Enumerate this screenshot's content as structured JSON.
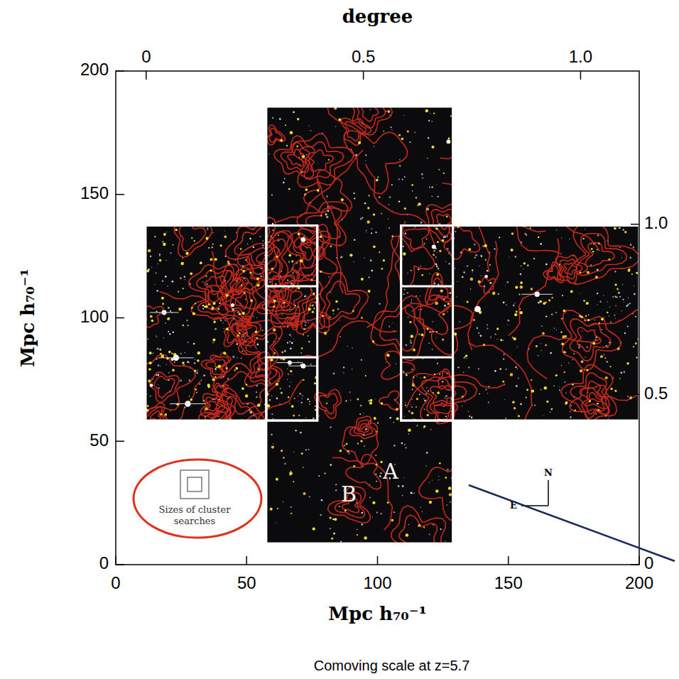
{
  "chart_data": {
    "type": "image",
    "x_label": "Mpc h₇₀⁻¹",
    "y_label": "Mpc h₇₀⁻¹",
    "x2_label": "degree",
    "caption": "Comoving scale at z=5.7",
    "xlim": [
      0,
      200
    ],
    "ylim": [
      0,
      200
    ],
    "xticks": [
      0,
      50,
      100,
      150,
      200
    ],
    "yticks": [
      0,
      50,
      100,
      150,
      200
    ],
    "x2lim": [
      -0.07,
      1.135
    ],
    "x2ticks": [
      0,
      0.5,
      {
        "value": 1,
        "label": "1.0"
      }
    ],
    "y2lim": [
      0,
      1.45
    ],
    "y2ticks": [
      0,
      0.5,
      {
        "value": 1,
        "label": "1.0"
      }
    ],
    "annotations": [
      {
        "text": "A",
        "x": 105,
        "y": 37
      },
      {
        "text": "B",
        "x": 89,
        "y": 28
      },
      {
        "text": "Sizes of cluster searches"
      },
      {
        "text": "N"
      },
      {
        "text": "E"
      }
    ]
  }
}
